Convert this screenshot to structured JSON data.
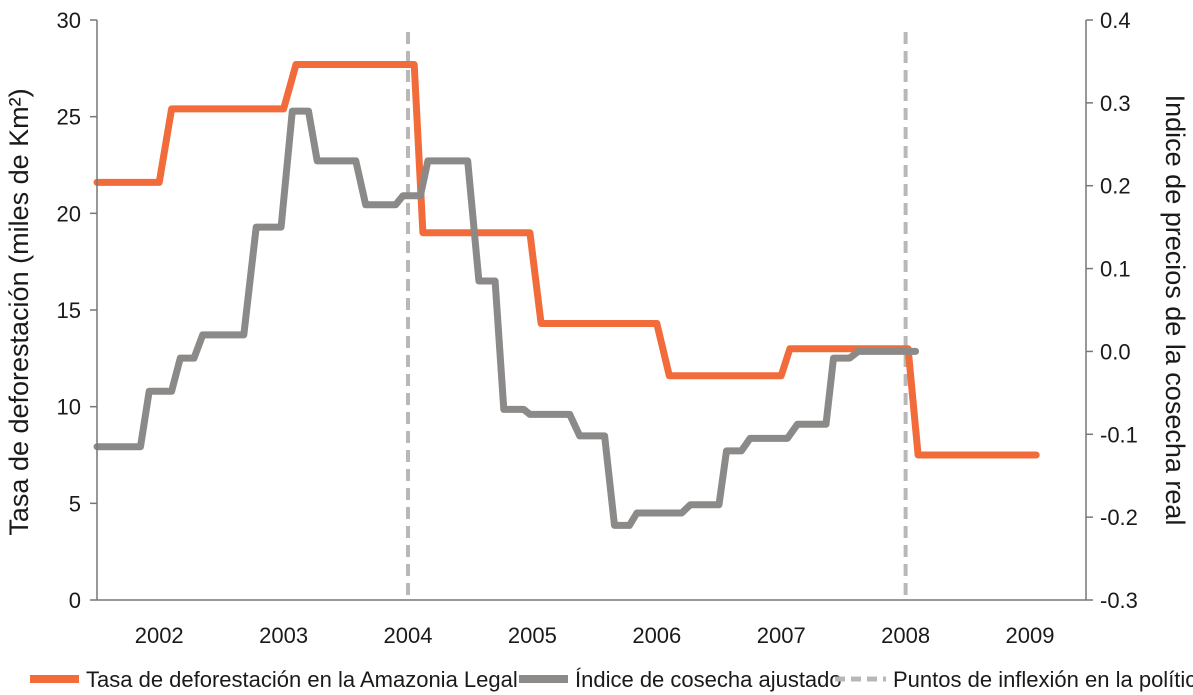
{
  "chart_data": {
    "type": "line",
    "xlabel": "",
    "x_ticks": [
      "2002",
      "2003",
      "2004",
      "2005",
      "2006",
      "2007",
      "2008",
      "2009"
    ],
    "xlim": [
      2001.5,
      2009.45
    ],
    "left_axis": {
      "label": "Tasa de deforestación (miles de Km²)",
      "range": [
        0,
        30
      ],
      "ticks": [
        "0",
        "5",
        "10",
        "15",
        "20",
        "25",
        "30"
      ]
    },
    "right_axis": {
      "label": "Indice de precios de la cosecha real",
      "range": [
        -0.3,
        0.4
      ],
      "ticks": [
        "0.4",
        "0.3",
        "0.2",
        "0.1",
        "0.0",
        "-0.1",
        "-0.2",
        "-0.3"
      ]
    },
    "grid": false,
    "legend_position": "bottom",
    "series": [
      {
        "name": "Tasa de deforestación en la Amazonia Legal",
        "axis": "left",
        "color": "#f26b3a",
        "points": [
          [
            2001.5,
            21.6
          ],
          [
            2002.0,
            21.6
          ],
          [
            2002.1,
            25.4
          ],
          [
            2003.0,
            25.4
          ],
          [
            2003.1,
            27.7
          ],
          [
            2004.05,
            27.7
          ],
          [
            2004.12,
            19.0
          ],
          [
            2004.98,
            19.0
          ],
          [
            2005.07,
            14.3
          ],
          [
            2006.0,
            14.3
          ],
          [
            2006.1,
            11.6
          ],
          [
            2007.0,
            11.6
          ],
          [
            2007.07,
            13.0
          ],
          [
            2008.02,
            13.0
          ],
          [
            2008.1,
            7.5
          ],
          [
            2009.05,
            7.5
          ]
        ]
      },
      {
        "name": "Índice de cosecha ajustado",
        "axis": "right",
        "color": "#8c8a88",
        "points": [
          [
            2001.5,
            -0.115
          ],
          [
            2001.85,
            -0.115
          ],
          [
            2001.92,
            -0.048
          ],
          [
            2002.1,
            -0.048
          ],
          [
            2002.17,
            -0.008
          ],
          [
            2002.28,
            -0.008
          ],
          [
            2002.35,
            0.02
          ],
          [
            2002.68,
            0.02
          ],
          [
            2002.78,
            0.15
          ],
          [
            2002.98,
            0.15
          ],
          [
            2003.07,
            0.29
          ],
          [
            2003.2,
            0.29
          ],
          [
            2003.27,
            0.23
          ],
          [
            2003.58,
            0.23
          ],
          [
            2003.66,
            0.177
          ],
          [
            2003.9,
            0.177
          ],
          [
            2003.96,
            0.188
          ],
          [
            2004.1,
            0.188
          ],
          [
            2004.16,
            0.23
          ],
          [
            2004.48,
            0.23
          ],
          [
            2004.57,
            0.085
          ],
          [
            2004.7,
            0.085
          ],
          [
            2004.77,
            -0.07
          ],
          [
            2004.93,
            -0.07
          ],
          [
            2004.98,
            -0.076
          ],
          [
            2005.3,
            -0.076
          ],
          [
            2005.38,
            -0.102
          ],
          [
            2005.58,
            -0.102
          ],
          [
            2005.66,
            -0.21
          ],
          [
            2005.78,
            -0.21
          ],
          [
            2005.84,
            -0.195
          ],
          [
            2006.2,
            -0.195
          ],
          [
            2006.27,
            -0.185
          ],
          [
            2006.5,
            -0.185
          ],
          [
            2006.56,
            -0.12
          ],
          [
            2006.68,
            -0.12
          ],
          [
            2006.75,
            -0.105
          ],
          [
            2007.05,
            -0.105
          ],
          [
            2007.13,
            -0.088
          ],
          [
            2007.36,
            -0.088
          ],
          [
            2007.42,
            -0.008
          ],
          [
            2007.55,
            -0.008
          ],
          [
            2007.62,
            0.0
          ],
          [
            2008.08,
            0.0
          ]
        ]
      },
      {
        "name": "Puntos de inflexión en la política",
        "type": "vline",
        "color": "#b8b8b8",
        "x_values": [
          2004.0,
          2008.0
        ]
      }
    ]
  }
}
